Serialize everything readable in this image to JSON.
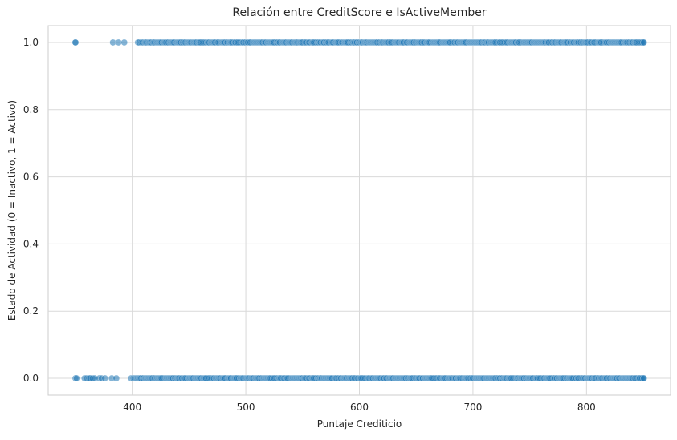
{
  "chart_data": {
    "type": "scatter",
    "title": "Relación entre CreditScore e IsActiveMember",
    "xlabel": "Puntaje Crediticio",
    "ylabel": "Estado de Actividad (0 = Inactivo, 1 = Activo)",
    "xlim": [
      326,
      874
    ],
    "ylim": [
      -0.05,
      1.05
    ],
    "x_ticks": [
      400,
      500,
      600,
      700,
      800
    ],
    "y_ticks": [
      0.0,
      0.2,
      0.4,
      0.6,
      0.8,
      1.0
    ],
    "x_tick_labels": [
      "400",
      "500",
      "600",
      "700",
      "800"
    ],
    "y_tick_labels": [
      "0.0",
      "0.2",
      "0.4",
      "0.6",
      "0.8",
      "1.0"
    ],
    "grid": true,
    "point_color": "#1f77b4",
    "point_alpha": 0.55,
    "x_range_active": [
      350,
      850
    ],
    "series": [
      {
        "label_value": 1,
        "sparse_x": [
          350,
          350,
          383,
          388,
          393,
          405,
          406,
          408
        ],
        "dense_range": [
          409,
          850
        ]
      },
      {
        "label_value": 0,
        "sparse_x": [
          350,
          351,
          358,
          360,
          362,
          363,
          365,
          367,
          371,
          373,
          376,
          382,
          386,
          399,
          401
        ],
        "dense_range": [
          402,
          850
        ]
      }
    ]
  }
}
